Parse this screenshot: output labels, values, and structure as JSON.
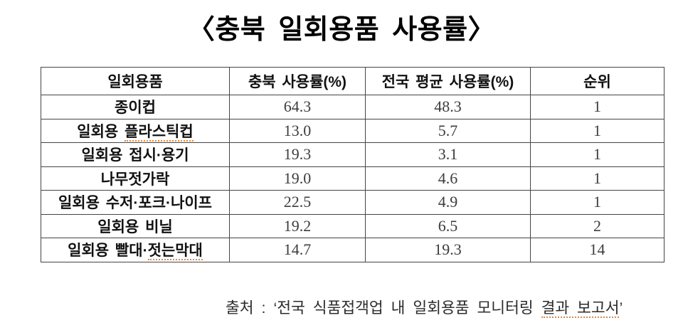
{
  "title": "〈충북 일회용품 사용률〉",
  "table": {
    "headers": {
      "item": "일회용품",
      "chungbuk_rate": "충북 사용률(%)",
      "national_rate": "전국 평균 사용률(%)",
      "rank": "순위"
    },
    "rows": [
      {
        "item_pre": "종이컵",
        "item_mark": "",
        "chungbuk": "64.3",
        "national": "48.3",
        "rank": "1"
      },
      {
        "item_pre": "일회용 ",
        "item_mark": "플라스틱컵",
        "chungbuk": "13.0",
        "national": "5.7",
        "rank": "1"
      },
      {
        "item_pre": "일회용 접시·용기",
        "item_mark": "",
        "chungbuk": "19.3",
        "national": "3.1",
        "rank": "1"
      },
      {
        "item_pre": "나무젓가락",
        "item_mark": "",
        "chungbuk": "19.0",
        "national": "4.6",
        "rank": "1"
      },
      {
        "item_pre": "일회용 수저·포크·나이프",
        "item_mark": "",
        "chungbuk": "22.5",
        "national": "4.9",
        "rank": "1"
      },
      {
        "item_pre": "일회용 비닐",
        "item_mark": "",
        "chungbuk": "19.2",
        "national": "6.5",
        "rank": "2"
      },
      {
        "item_pre": "일회용 빨대·",
        "item_mark": "젓는막대",
        "chungbuk": "14.7",
        "national": "19.3",
        "rank": "14"
      }
    ]
  },
  "footer": {
    "source_pre": "출처 : ‘전국 식품접객업 내 일회용품 모니터링 ",
    "source_mark": "결과 보고서",
    "source_post": "’"
  },
  "colors": {
    "background": "#ffffff",
    "title_text": "#000000",
    "table_border": "#454545",
    "label_text": "#111111",
    "number_text": "#3d3d3d",
    "spellcheck_underline": "#e2863c"
  }
}
